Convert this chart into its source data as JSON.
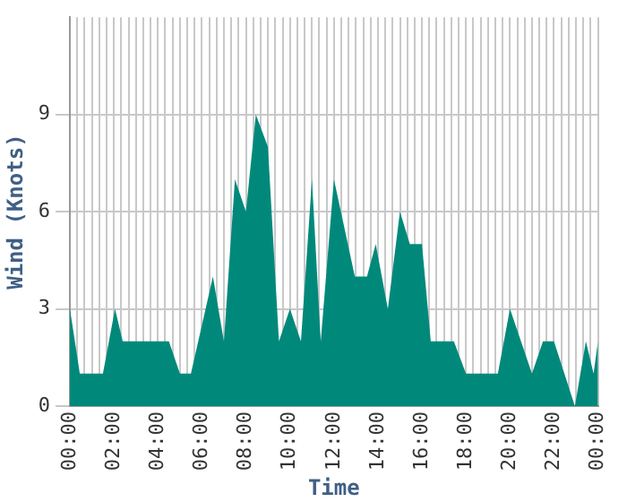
{
  "chart_data": {
    "type": "area",
    "xlabel": "Time",
    "ylabel": "Wind (Knots)",
    "grid": true,
    "legend": false,
    "marker": "none",
    "xlim": [
      0,
      24
    ],
    "ylim": [
      0,
      12
    ],
    "yticks": [
      0,
      3,
      6,
      9
    ],
    "xticks": [
      {
        "value": 0,
        "label": "00:00"
      },
      {
        "value": 0.333,
        "label": null
      },
      {
        "value": 0.667,
        "label": null
      },
      {
        "value": 1,
        "label": null
      },
      {
        "value": 1.333,
        "label": null
      },
      {
        "value": 1.667,
        "label": null
      },
      {
        "value": 2,
        "label": "02:00"
      },
      {
        "value": 2.333,
        "label": null
      },
      {
        "value": 2.667,
        "label": null
      },
      {
        "value": 3,
        "label": null
      },
      {
        "value": 3.333,
        "label": null
      },
      {
        "value": 3.667,
        "label": null
      },
      {
        "value": 4,
        "label": "04:00"
      },
      {
        "value": 4.333,
        "label": null
      },
      {
        "value": 4.667,
        "label": null
      },
      {
        "value": 5,
        "label": null
      },
      {
        "value": 5.333,
        "label": null
      },
      {
        "value": 5.667,
        "label": null
      },
      {
        "value": 6,
        "label": "06:00"
      },
      {
        "value": 6.333,
        "label": null
      },
      {
        "value": 6.667,
        "label": null
      },
      {
        "value": 7,
        "label": null
      },
      {
        "value": 7.333,
        "label": null
      },
      {
        "value": 7.667,
        "label": null
      },
      {
        "value": 8,
        "label": "08:00"
      },
      {
        "value": 8.333,
        "label": null
      },
      {
        "value": 8.667,
        "label": null
      },
      {
        "value": 9,
        "label": null
      },
      {
        "value": 9.333,
        "label": null
      },
      {
        "value": 9.667,
        "label": null
      },
      {
        "value": 10,
        "label": "10:00"
      },
      {
        "value": 10.333,
        "label": null
      },
      {
        "value": 10.667,
        "label": null
      },
      {
        "value": 11,
        "label": null
      },
      {
        "value": 11.333,
        "label": null
      },
      {
        "value": 11.667,
        "label": null
      },
      {
        "value": 12,
        "label": "12:00"
      },
      {
        "value": 12.333,
        "label": null
      },
      {
        "value": 12.667,
        "label": null
      },
      {
        "value": 13,
        "label": null
      },
      {
        "value": 13.333,
        "label": null
      },
      {
        "value": 13.667,
        "label": null
      },
      {
        "value": 14,
        "label": "14:00"
      },
      {
        "value": 14.333,
        "label": null
      },
      {
        "value": 14.667,
        "label": null
      },
      {
        "value": 15,
        "label": null
      },
      {
        "value": 15.333,
        "label": null
      },
      {
        "value": 15.667,
        "label": null
      },
      {
        "value": 16,
        "label": "16:00"
      },
      {
        "value": 16.333,
        "label": null
      },
      {
        "value": 16.667,
        "label": null
      },
      {
        "value": 17,
        "label": null
      },
      {
        "value": 17.333,
        "label": null
      },
      {
        "value": 17.667,
        "label": null
      },
      {
        "value": 18,
        "label": "18:00"
      },
      {
        "value": 18.333,
        "label": null
      },
      {
        "value": 18.667,
        "label": null
      },
      {
        "value": 19,
        "label": null
      },
      {
        "value": 19.333,
        "label": null
      },
      {
        "value": 19.667,
        "label": null
      },
      {
        "value": 20,
        "label": "20:00"
      },
      {
        "value": 20.333,
        "label": null
      },
      {
        "value": 20.667,
        "label": null
      },
      {
        "value": 21,
        "label": null
      },
      {
        "value": 21.333,
        "label": null
      },
      {
        "value": 21.667,
        "label": null
      },
      {
        "value": 22,
        "label": "22:00"
      },
      {
        "value": 22.333,
        "label": null
      },
      {
        "value": 22.667,
        "label": null
      },
      {
        "value": 23,
        "label": null
      },
      {
        "value": 23.333,
        "label": null
      },
      {
        "value": 23.667,
        "label": null
      },
      {
        "value": 24,
        "label": "00:00"
      }
    ],
    "series": [
      {
        "color": "#00897b",
        "x": [
          0,
          0.45,
          1.5,
          2.05,
          2.4,
          4.5,
          5.0,
          5.5,
          6.5,
          7.0,
          7.5,
          8.0,
          8.45,
          9.0,
          9.5,
          10.0,
          10.5,
          11.0,
          11.4,
          12.0,
          12.95,
          13.5,
          13.9,
          14.45,
          15.0,
          15.45,
          16.0,
          16.4,
          17.45,
          18.0,
          19.45,
          20.0,
          21.0,
          21.5,
          22.0,
          22.95,
          23.45,
          23.8,
          24
        ],
        "values": [
          3,
          1,
          1,
          3,
          2,
          2,
          1,
          1,
          4,
          2,
          7,
          6,
          9,
          8,
          2,
          3,
          2,
          7,
          2,
          7,
          4,
          4,
          5,
          3,
          6,
          5,
          5,
          2,
          2,
          1,
          1,
          3,
          1,
          2,
          2,
          0,
          2,
          1,
          2
        ]
      }
    ]
  }
}
